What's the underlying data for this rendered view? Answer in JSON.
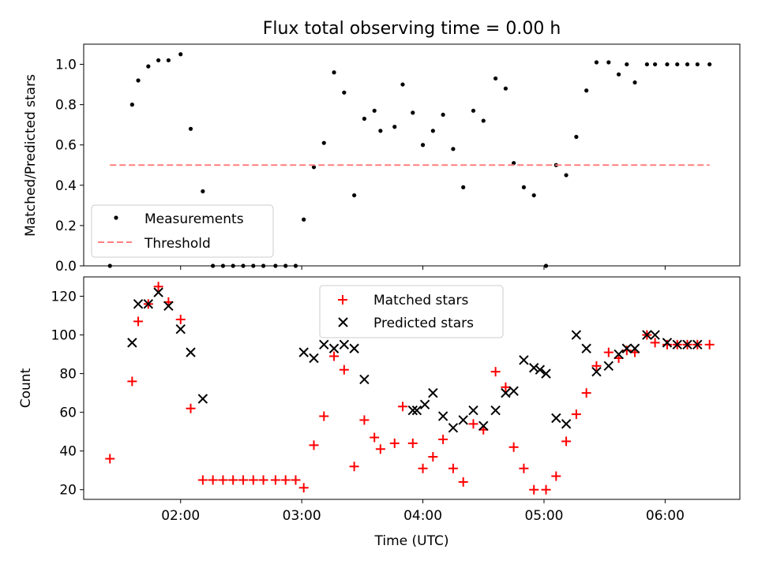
{
  "title": "Flux total observing time = 0.00 h",
  "chart_data": [
    {
      "type": "scatter",
      "ylabel": "Matched/Predicted stars",
      "ylim": [
        0,
        1.1
      ],
      "yticks": [
        "0.0",
        "0.2",
        "0.4",
        "0.6",
        "0.8",
        "1.0"
      ],
      "ytick_values": [
        0,
        0.2,
        0.4,
        0.6,
        0.8,
        1.0
      ],
      "xlim": [
        "01:12",
        "06:37"
      ],
      "xticks": [],
      "grid": false,
      "legend": "lower-left",
      "series": [
        {
          "name": "Measurements",
          "style": "dot",
          "color": "#000000",
          "x": [
            "01:25",
            "01:36",
            "01:39",
            "01:44",
            "01:49",
            "01:54",
            "02:00",
            "02:05",
            "02:11",
            "02:16",
            "02:21",
            "02:26",
            "02:31",
            "02:36",
            "02:41",
            "02:47",
            "02:52",
            "02:57",
            "03:01",
            "03:06",
            "03:11",
            "03:16",
            "03:21",
            "03:26",
            "03:31",
            "03:36",
            "03:39",
            "03:46",
            "03:50",
            "03:55",
            "04:00",
            "04:05",
            "04:10",
            "04:15",
            "04:20",
            "04:25",
            "04:30",
            "04:36",
            "04:41",
            "04:45",
            "04:50",
            "04:55",
            "05:01",
            "05:06",
            "05:11",
            "05:16",
            "05:21",
            "05:26",
            "05:32",
            "05:37",
            "05:41",
            "05:45",
            "05:51",
            "05:55",
            "06:01",
            "06:06",
            "06:11",
            "06:16",
            "06:22"
          ],
          "y": [
            0.0,
            0.8,
            0.92,
            0.99,
            1.02,
            1.02,
            1.05,
            0.68,
            0.37,
            0.0,
            0.0,
            0.0,
            0.0,
            0.0,
            0.0,
            0.0,
            0.0,
            0.0,
            0.23,
            0.49,
            0.61,
            0.96,
            0.86,
            0.35,
            0.73,
            0.77,
            0.67,
            0.69,
            0.9,
            0.76,
            0.6,
            0.67,
            0.75,
            0.58,
            0.39,
            0.77,
            0.72,
            0.93,
            0.88,
            0.51,
            0.39,
            0.35,
            0.0,
            0.5,
            0.45,
            0.64,
            0.87,
            1.01,
            1.01,
            0.95,
            1.0,
            0.91,
            1.0,
            1.0,
            1.0,
            1.0,
            1.0,
            1.0,
            1.0
          ]
        },
        {
          "name": "Threshold",
          "style": "dashed",
          "color": "#ff7f7f",
          "x": [
            "01:25",
            "06:22"
          ],
          "y": [
            0.5,
            0.5
          ]
        }
      ]
    },
    {
      "type": "scatter",
      "ylabel": "Count",
      "xlabel": "Time (UTC)",
      "ylim": [
        15,
        130
      ],
      "yticks": [
        "20",
        "40",
        "60",
        "80",
        "100",
        "120"
      ],
      "ytick_values": [
        20,
        40,
        60,
        80,
        100,
        120
      ],
      "xlim": [
        "01:12",
        "06:37"
      ],
      "xticks": [
        "02:00",
        "03:00",
        "04:00",
        "05:00",
        "06:00"
      ],
      "grid": false,
      "legend": "top-center",
      "series": [
        {
          "name": "Matched stars",
          "marker": "+",
          "color": "#ff0000",
          "x": [
            "01:25",
            "01:36",
            "01:39",
            "01:44",
            "01:49",
            "01:54",
            "02:00",
            "02:05",
            "02:11",
            "02:16",
            "02:21",
            "02:26",
            "02:31",
            "02:36",
            "02:41",
            "02:47",
            "02:52",
            "02:57",
            "03:01",
            "03:06",
            "03:11",
            "03:16",
            "03:21",
            "03:26",
            "03:31",
            "03:36",
            "03:39",
            "03:46",
            "03:50",
            "03:55",
            "04:00",
            "04:05",
            "04:10",
            "04:15",
            "04:20",
            "04:25",
            "04:30",
            "04:36",
            "04:41",
            "04:45",
            "04:50",
            "04:55",
            "05:01",
            "05:06",
            "05:11",
            "05:16",
            "05:21",
            "05:26",
            "05:32",
            "05:37",
            "05:41",
            "05:45",
            "05:51",
            "05:55",
            "06:01",
            "06:06",
            "06:11",
            "06:16",
            "06:22"
          ],
          "y": [
            36,
            76,
            107,
            116,
            125,
            117,
            108,
            62,
            25,
            25,
            25,
            25,
            25,
            25,
            25,
            25,
            25,
            25,
            21,
            43,
            58,
            89,
            82,
            32,
            56,
            47,
            41,
            44,
            63,
            44,
            31,
            37,
            46,
            31,
            24,
            54,
            51,
            81,
            73,
            42,
            31,
            20,
            20,
            27,
            45,
            59,
            70,
            84,
            91,
            88,
            92,
            91,
            100,
            96,
            95,
            95,
            95,
            95,
            95
          ]
        },
        {
          "name": "Predicted stars",
          "marker": "x",
          "color": "#000000",
          "x": [
            "01:36",
            "01:39",
            "01:44",
            "01:49",
            "01:54",
            "02:00",
            "02:05",
            "02:11",
            "03:01",
            "03:06",
            "03:11",
            "03:16",
            "03:21",
            "03:26",
            "03:31",
            "03:55",
            "03:57",
            "04:01",
            "04:05",
            "04:10",
            "04:15",
            "04:20",
            "04:25",
            "04:30",
            "04:36",
            "04:41",
            "04:45",
            "04:50",
            "04:55",
            "04:58",
            "05:01",
            "05:06",
            "05:11",
            "05:16",
            "05:21",
            "05:26",
            "05:32",
            "05:37",
            "05:41",
            "05:45",
            "05:51",
            "05:55",
            "06:01",
            "06:06",
            "06:11",
            "06:16"
          ],
          "y": [
            96,
            116,
            116,
            122,
            115,
            103,
            91,
            67,
            91,
            88,
            95,
            93,
            95,
            93,
            77,
            61,
            61,
            64,
            70,
            58,
            52,
            56,
            61,
            53,
            61,
            70,
            71,
            87,
            83,
            82,
            80,
            57,
            54,
            100,
            93,
            81,
            84,
            90,
            93,
            93,
            100,
            100,
            96,
            95,
            95,
            95
          ]
        }
      ]
    }
  ]
}
